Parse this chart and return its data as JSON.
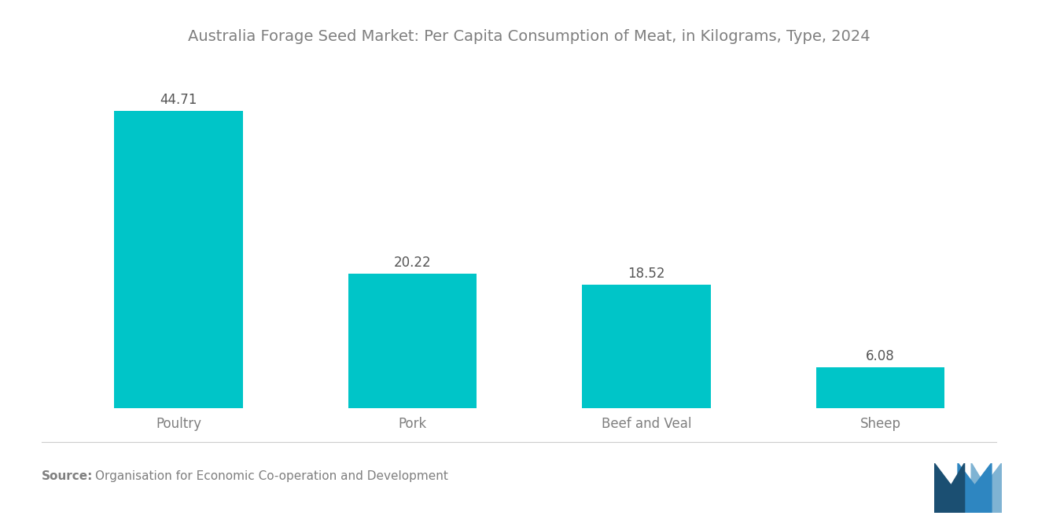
{
  "title": "Australia Forage Seed Market: Per Capita Consumption of Meat, in Kilograms, Type, 2024",
  "categories": [
    "Poultry",
    "Pork",
    "Beef and Veal",
    "Sheep"
  ],
  "values": [
    44.71,
    20.22,
    18.52,
    6.08
  ],
  "bar_color": "#00C5C8",
  "value_labels": [
    "44.71",
    "20.22",
    "18.52",
    "6.08"
  ],
  "source_bold": "Source:",
  "source_text": "Organisation for Economic Co-operation and Development",
  "background_color": "#ffffff",
  "title_color": "#7f7f7f",
  "label_color": "#7f7f7f",
  "value_color": "#555555",
  "title_fontsize": 14,
  "label_fontsize": 12,
  "value_fontsize": 12,
  "source_fontsize": 11,
  "ylim": [
    0,
    52
  ],
  "bar_width": 0.55
}
